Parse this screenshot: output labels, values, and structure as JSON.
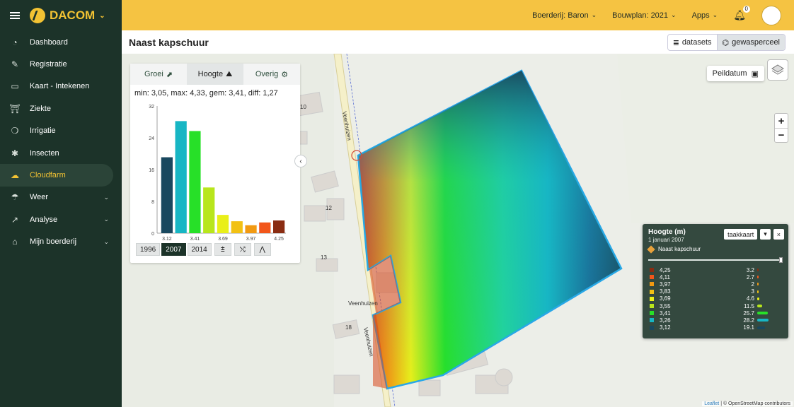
{
  "app": {
    "brand": "DACOM"
  },
  "sidebar": {
    "items": [
      {
        "label": "Dashboard",
        "icon": "gauge-icon",
        "glyph": "◔"
      },
      {
        "label": "Registratie",
        "icon": "pencil-icon",
        "glyph": "✎"
      },
      {
        "label": "Kaart - Intekenen",
        "icon": "map-icon",
        "glyph": "▭"
      },
      {
        "label": "Ziekte",
        "icon": "tower-icon",
        "glyph": "⛩"
      },
      {
        "label": "Irrigatie",
        "icon": "droplets-icon",
        "glyph": "❍"
      },
      {
        "label": "Insecten",
        "icon": "bug-icon",
        "glyph": "✱"
      },
      {
        "label": "Cloudfarm",
        "icon": "cloud-upload-icon",
        "glyph": "☁"
      },
      {
        "label": "Weer",
        "icon": "cloud-rain-icon",
        "glyph": "☂"
      },
      {
        "label": "Analyse",
        "icon": "chart-line-icon",
        "glyph": "↗"
      },
      {
        "label": "Mijn boerderij",
        "icon": "farm-icon",
        "glyph": "⌂"
      }
    ]
  },
  "topbar": {
    "farm": "Boerderij: Baron",
    "plan": "Bouwplan: 2021",
    "apps": "Apps",
    "notifications": "0"
  },
  "page": {
    "title": "Naast kapschuur",
    "datasets_label": "datasets",
    "gewasperceel_label": "gewasperceel"
  },
  "panel": {
    "tabs": [
      "Groei",
      "Hoogte",
      "Overig"
    ],
    "stats": "min:  3,05, max: 4,33, gem: 3,41, diff: 1,27",
    "years": [
      "1996",
      "2007",
      "2014"
    ],
    "selected_year": "2007"
  },
  "chart_data": {
    "type": "bar",
    "categories": [
      "3.12",
      "3.26",
      "3.41",
      "3.55",
      "3.69",
      "3.83",
      "3.97",
      "4.11",
      "4.25"
    ],
    "values": [
      19.1,
      28.2,
      25.7,
      11.5,
      4.6,
      3,
      2,
      2.7,
      3.2
    ],
    "colors": [
      "#19485f",
      "#17b6c4",
      "#27e028",
      "#b8e61c",
      "#e9ef19",
      "#f2c114",
      "#f29a12",
      "#f2561a",
      "#8a2c12"
    ],
    "xticks": [
      "3.12",
      "3.41",
      "3.69",
      "3.97",
      "4.25"
    ],
    "yticks": [
      0,
      8,
      16,
      24,
      32
    ],
    "ylim": [
      0,
      32
    ],
    "grid": false
  },
  "map": {
    "peildatum_label": "Peildatum",
    "road_labels": [
      "Veenhuizen",
      "Veenhuizen",
      "Veenhuizen"
    ],
    "house_numbers": [
      "10",
      "12",
      "13",
      "18"
    ],
    "attribution_leaflet": "Leaflet",
    "attribution_rest": "| © OpenStreetMap contributors"
  },
  "legend": {
    "title": "Hoogte (m)",
    "date": "1 januari 2007",
    "field": "Naast kapschuur",
    "button_label": "taakkaart",
    "rows": [
      {
        "value": "4,25",
        "pct": "3.2",
        "color": "#8a2c12"
      },
      {
        "value": "4,11",
        "pct": "2.7",
        "color": "#f2561a"
      },
      {
        "value": "3,97",
        "pct": "2",
        "color": "#f29a12"
      },
      {
        "value": "3,83",
        "pct": "3",
        "color": "#f2c114"
      },
      {
        "value": "3,69",
        "pct": "4.6",
        "color": "#e9ef19"
      },
      {
        "value": "3,55",
        "pct": "11.5",
        "color": "#b8e61c"
      },
      {
        "value": "3,41",
        "pct": "25.7",
        "color": "#27e028"
      },
      {
        "value": "3,26",
        "pct": "28.2",
        "color": "#17b6c4"
      },
      {
        "value": "3,12",
        "pct": "19.1",
        "color": "#19485f"
      }
    ]
  }
}
